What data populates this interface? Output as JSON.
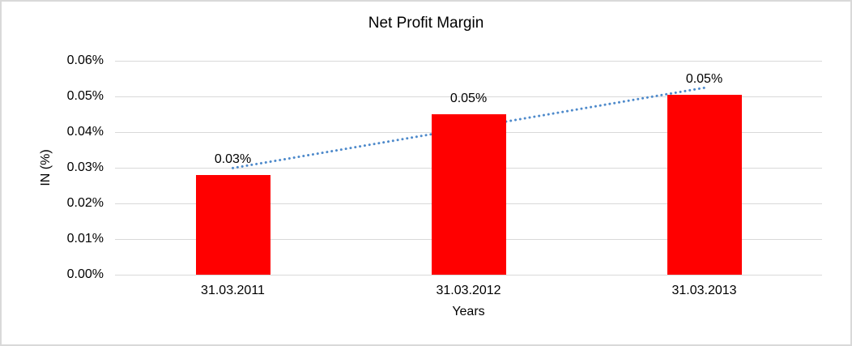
{
  "window": {
    "background_color": "#ffffff",
    "border_color": "#d9d9d9"
  },
  "chart_data": {
    "type": "bar",
    "title": "Net Profit Margin",
    "xlabel": "Years",
    "ylabel": "IN (%)",
    "categories": [
      "31.03.2011",
      "31.03.2012",
      "31.03.2013"
    ],
    "series": [
      {
        "name": "Net Profit Margin",
        "values": [
          0.028,
          0.045,
          0.0505
        ],
        "data_labels": [
          "0.03%",
          "0.05%",
          "0.05%"
        ]
      }
    ],
    "ylim": [
      0,
      0.06
    ],
    "y_ticks": [
      {
        "label": "0.00%",
        "value": 0.0
      },
      {
        "label": "0.01%",
        "value": 0.01
      },
      {
        "label": "0.02%",
        "value": 0.02
      },
      {
        "label": "0.03%",
        "value": 0.03
      },
      {
        "label": "0.04%",
        "value": 0.04
      },
      {
        "label": "0.05%",
        "value": 0.05
      },
      {
        "label": "0.06%",
        "value": 0.06
      }
    ],
    "grid": true,
    "legend": "none",
    "bar_color": "#ff0000",
    "gridline_color": "#d9d9d9",
    "text_color": "#000000",
    "trendline": {
      "type": "linear",
      "style": "dotted",
      "color": "#4e8acb"
    }
  }
}
